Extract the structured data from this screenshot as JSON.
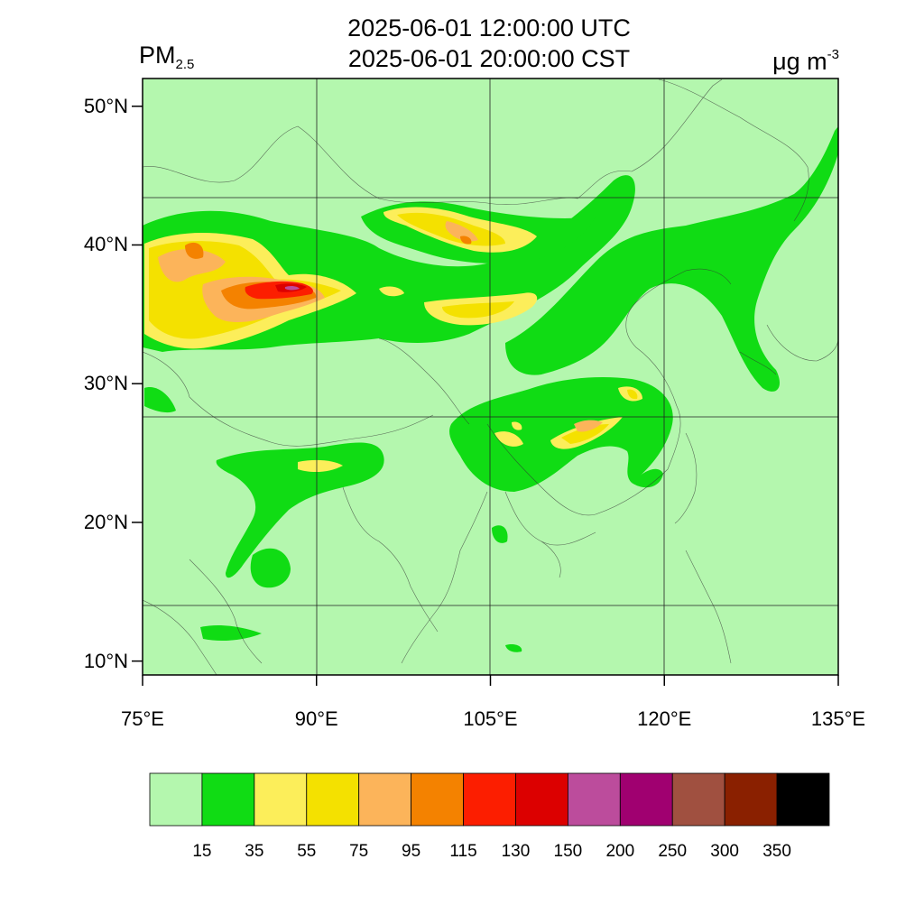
{
  "title": {
    "line1": "2025-06-01 12:00:00 UTC",
    "line2": "2025-06-01 20:00:00 CST"
  },
  "variable": {
    "name": "PM",
    "subscript": "2.5"
  },
  "unit": {
    "base": "μg m",
    "exponent": "-3"
  },
  "map": {
    "lon_range": [
      75,
      135
    ],
    "lat_range": [
      9,
      52
    ],
    "lat_ticks": [
      {
        "value": 50,
        "label": "50°N"
      },
      {
        "value": 40,
        "label": "40°N"
      },
      {
        "value": 30,
        "label": "30°N"
      },
      {
        "value": 20,
        "label": "20°N"
      },
      {
        "value": 10,
        "label": "10°N"
      }
    ],
    "lon_ticks": [
      {
        "value": 75,
        "label": "75°E"
      },
      {
        "value": 90,
        "label": "90°E"
      },
      {
        "value": 105,
        "label": "105°E"
      },
      {
        "value": 120,
        "label": "120°E"
      },
      {
        "value": 135,
        "label": "135°E"
      }
    ],
    "background_color": "#b4f7ae"
  },
  "colorbar": {
    "colors": [
      "#b4f7ae",
      "#10dc14",
      "#fcee5a",
      "#f4e100",
      "#fcb45a",
      "#f48200",
      "#fc1e00",
      "#dc0000",
      "#bc4c9c",
      "#a00070",
      "#a05040",
      "#8a2000",
      "#000000"
    ],
    "labels": [
      "15",
      "35",
      "55",
      "75",
      "95",
      "115",
      "130",
      "150",
      "200",
      "250",
      "300",
      "350"
    ]
  }
}
